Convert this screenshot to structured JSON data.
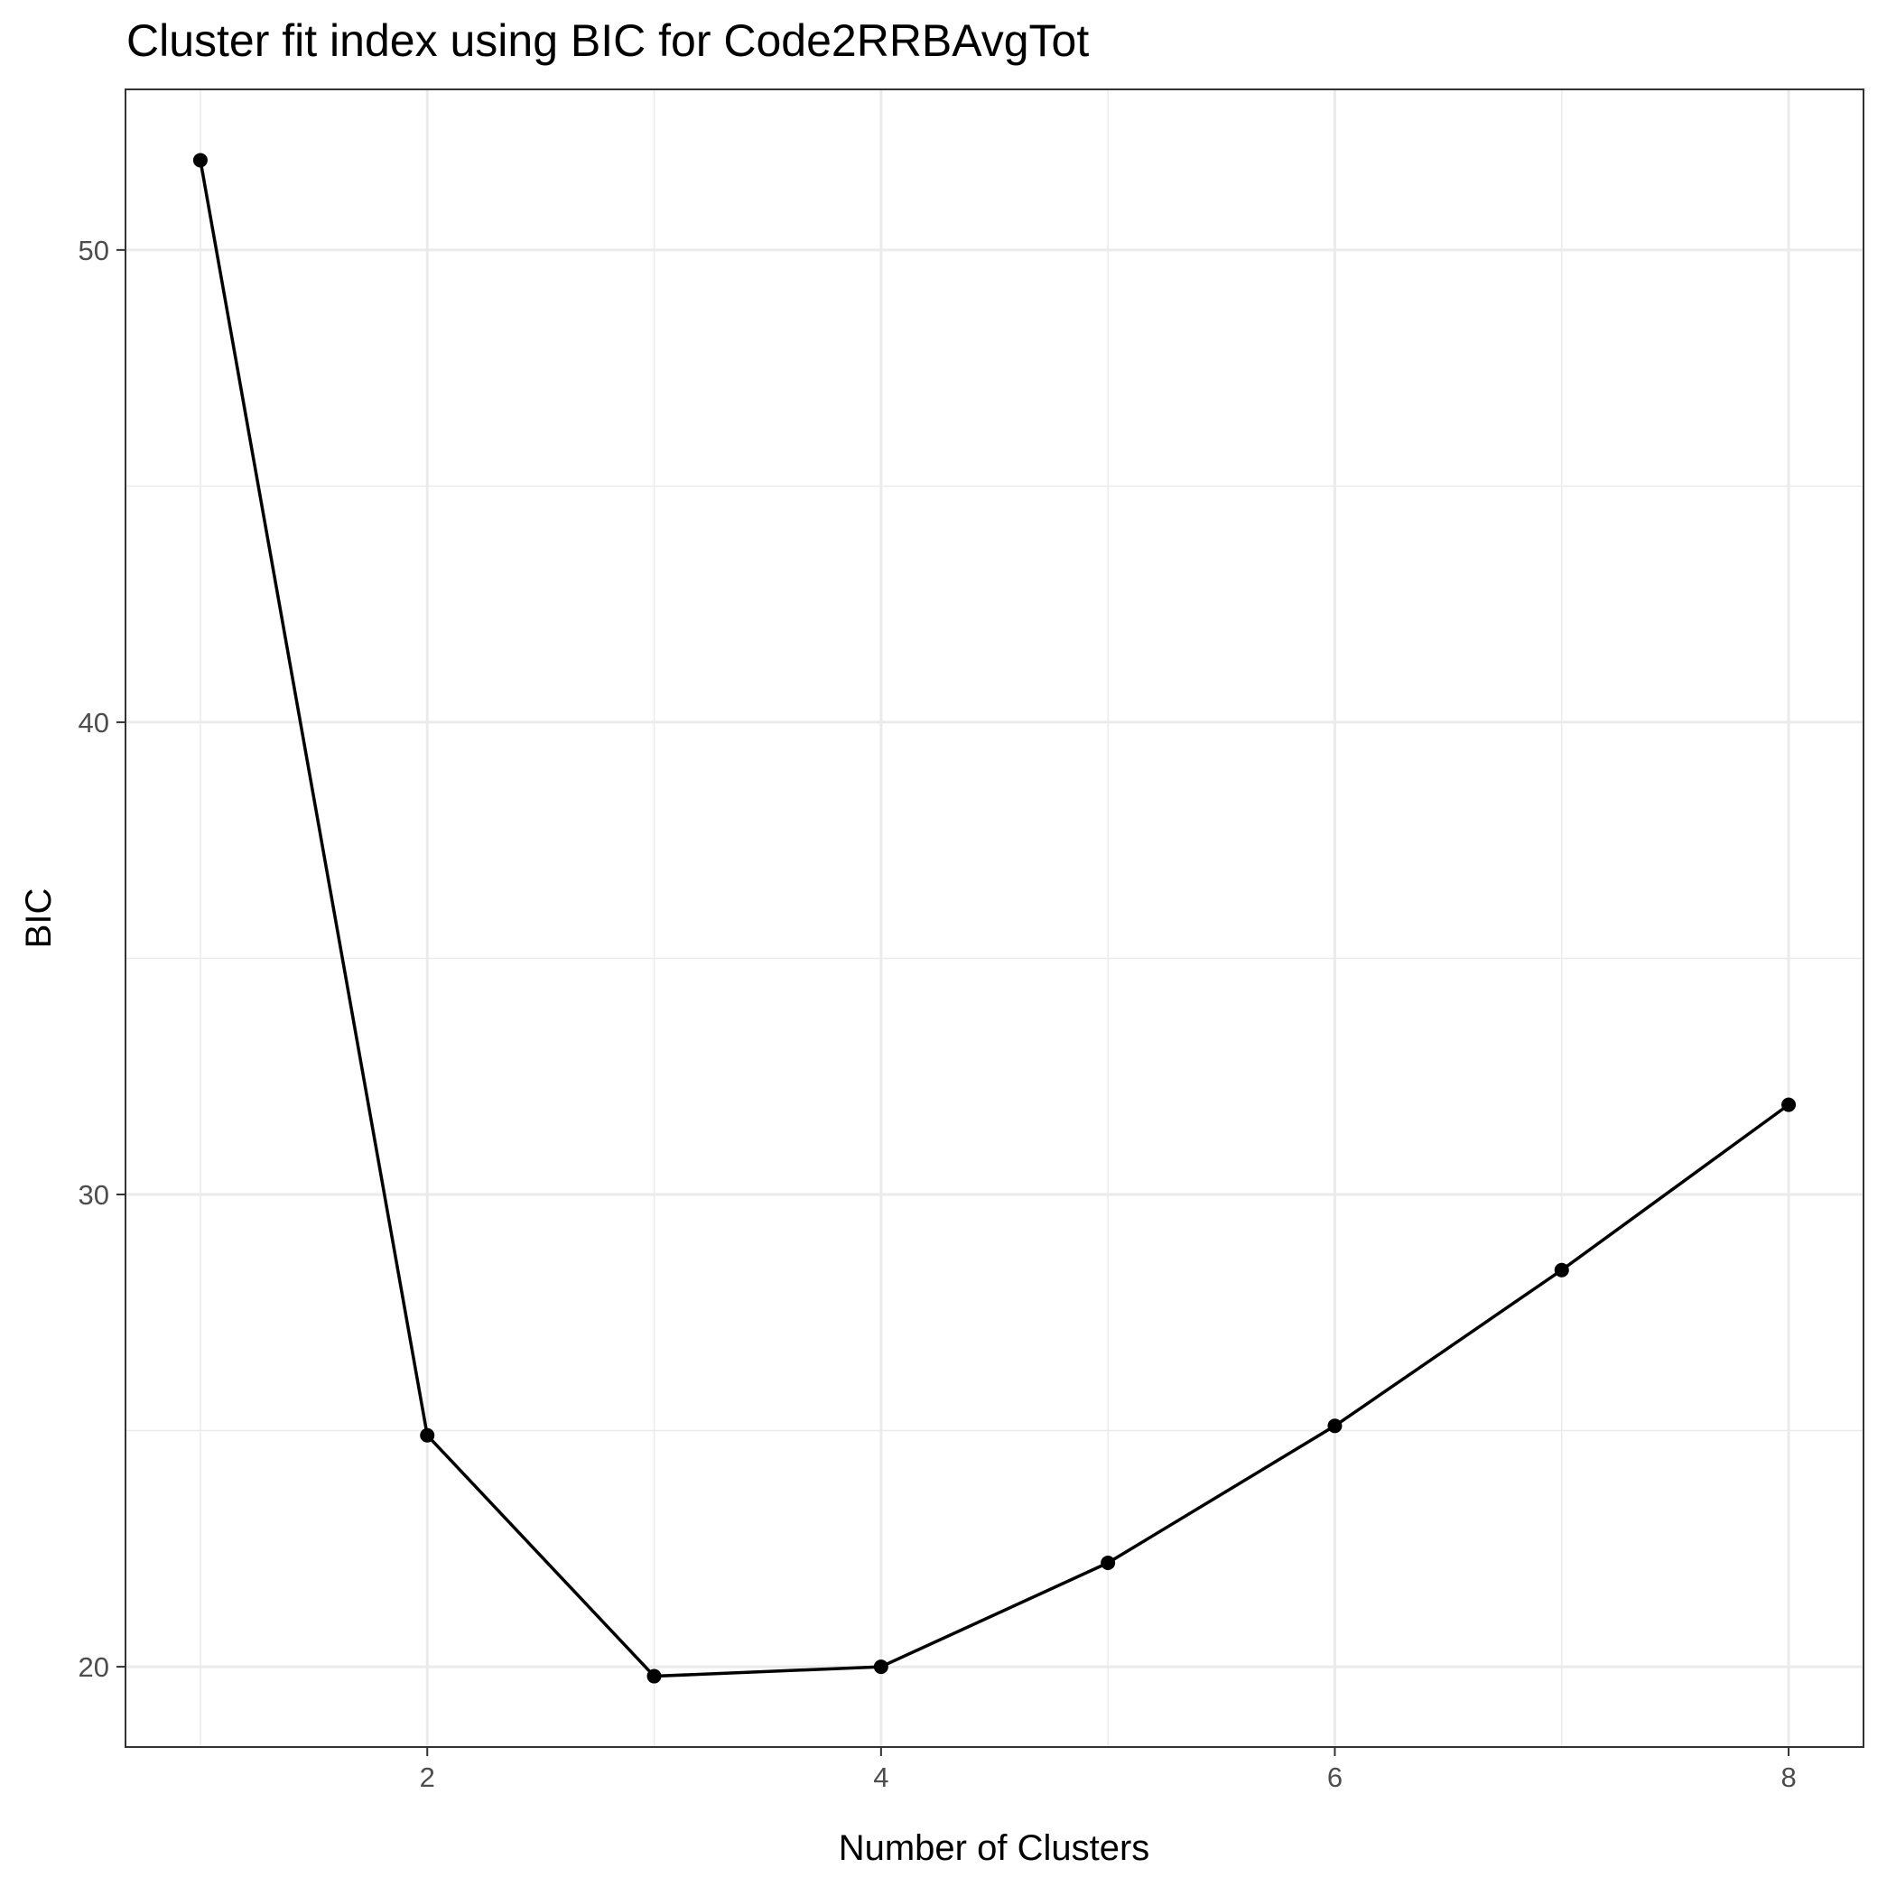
{
  "chart_data": {
    "type": "line",
    "title": "Cluster fit index using BIC for Code2RRBAvgTot",
    "xlabel": "Number of Clusters",
    "ylabel": "BIC",
    "x": [
      1,
      2,
      3,
      4,
      5,
      6,
      7,
      8
    ],
    "series": [
      {
        "values": [
          51.9,
          24.9,
          19.8,
          20.0,
          22.2,
          25.1,
          28.4,
          31.9
        ]
      }
    ],
    "xlim": [
      0.67,
      8.33
    ],
    "ylim": [
      18.3,
      53.4
    ],
    "xticks": [
      2,
      4,
      6,
      8
    ],
    "yticks": [
      20,
      30,
      40,
      50
    ],
    "grid": true,
    "legend": "none",
    "colors": {
      "line": "#000000",
      "grid": "#ebebeb",
      "panel_border": "#333333",
      "tick_text": "#4d4d4d"
    }
  }
}
